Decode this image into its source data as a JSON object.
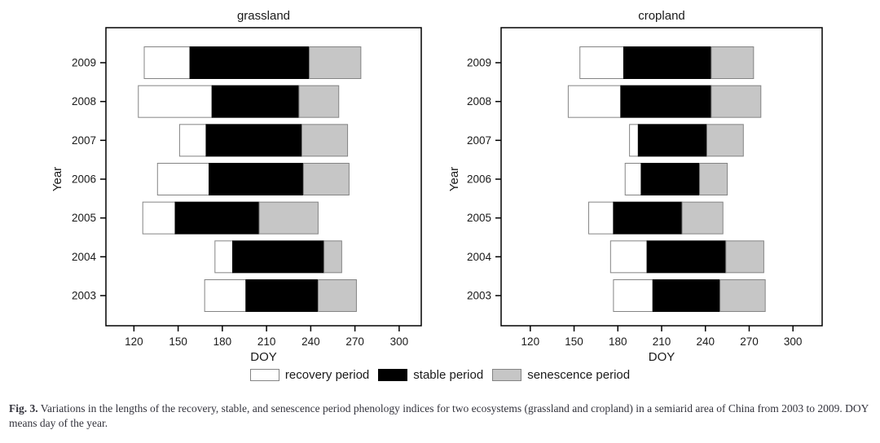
{
  "figure": {
    "caption_prefix": "Fig. 3.",
    "caption_text": " Variations in the lengths of the recovery, stable, and senescence period phenology indices for two ecosystems (grassland and cropland) in a semiarid area of China from 2003 to 2009. DOY means day of the year."
  },
  "legend": {
    "items": [
      {
        "label": "recovery period",
        "color": "#ffffff"
      },
      {
        "label": "stable period",
        "color": "#000000"
      },
      {
        "label": "senescence period",
        "color": "#c6c6c6"
      }
    ]
  },
  "colors": {
    "recovery": "#ffffff",
    "stable": "#000000",
    "senescence": "#c6c6c6",
    "segment_border": "#848484",
    "axis": "#000000",
    "tick_label": "#1a1a1a"
  },
  "chart_data": [
    {
      "type": "bar",
      "orientation": "horizontal",
      "stacked": true,
      "title": "grassland",
      "xlabel": "DOY",
      "ylabel": "Year",
      "xlim": [
        101,
        315
      ],
      "xticks": [
        120,
        150,
        180,
        210,
        240,
        270,
        300
      ],
      "years": [
        "2009",
        "2008",
        "2007",
        "2006",
        "2005",
        "2004",
        "2003"
      ],
      "series_names": [
        "recovery period",
        "stable period",
        "senescence period"
      ],
      "bars": [
        {
          "year": "2009",
          "recovery": [
            127,
            158
          ],
          "stable": [
            158,
            239
          ],
          "senescence": [
            239,
            274
          ]
        },
        {
          "year": "2008",
          "recovery": [
            123,
            173
          ],
          "stable": [
            173,
            232
          ],
          "senescence": [
            232,
            259
          ]
        },
        {
          "year": "2007",
          "recovery": [
            151,
            169
          ],
          "stable": [
            169,
            234
          ],
          "senescence": [
            234,
            265
          ]
        },
        {
          "year": "2006",
          "recovery": [
            136,
            171
          ],
          "stable": [
            171,
            235
          ],
          "senescence": [
            235,
            266
          ]
        },
        {
          "year": "2005",
          "recovery": [
            126,
            148
          ],
          "stable": [
            148,
            205
          ],
          "senescence": [
            205,
            245
          ]
        },
        {
          "year": "2004",
          "recovery": [
            175,
            187
          ],
          "stable": [
            187,
            249
          ],
          "senescence": [
            249,
            261
          ]
        },
        {
          "year": "2003",
          "recovery": [
            168,
            196
          ],
          "stable": [
            196,
            245
          ],
          "senescence": [
            245,
            271
          ]
        }
      ]
    },
    {
      "type": "bar",
      "orientation": "horizontal",
      "stacked": true,
      "title": "cropland",
      "xlabel": "DOY",
      "ylabel": "Year",
      "xlim": [
        100,
        320
      ],
      "xticks": [
        120,
        150,
        180,
        210,
        240,
        270,
        300
      ],
      "years": [
        "2009",
        "2008",
        "2007",
        "2006",
        "2005",
        "2004",
        "2003"
      ],
      "series_names": [
        "recovery period",
        "stable period",
        "senescence period"
      ],
      "bars": [
        {
          "year": "2009",
          "recovery": [
            154,
            184
          ],
          "stable": [
            184,
            244
          ],
          "senescence": [
            244,
            273
          ]
        },
        {
          "year": "2008",
          "recovery": [
            146,
            182
          ],
          "stable": [
            182,
            244
          ],
          "senescence": [
            244,
            278
          ]
        },
        {
          "year": "2007",
          "recovery": [
            188,
            194
          ],
          "stable": [
            194,
            241
          ],
          "senescence": [
            241,
            266
          ]
        },
        {
          "year": "2006",
          "recovery": [
            185,
            196
          ],
          "stable": [
            196,
            236
          ],
          "senescence": [
            236,
            255
          ]
        },
        {
          "year": "2005",
          "recovery": [
            160,
            177
          ],
          "stable": [
            177,
            224
          ],
          "senescence": [
            224,
            252
          ]
        },
        {
          "year": "2004",
          "recovery": [
            175,
            200
          ],
          "stable": [
            200,
            254
          ],
          "senescence": [
            254,
            280
          ]
        },
        {
          "year": "2003",
          "recovery": [
            177,
            204
          ],
          "stable": [
            204,
            250
          ],
          "senescence": [
            250,
            281
          ]
        }
      ]
    }
  ]
}
